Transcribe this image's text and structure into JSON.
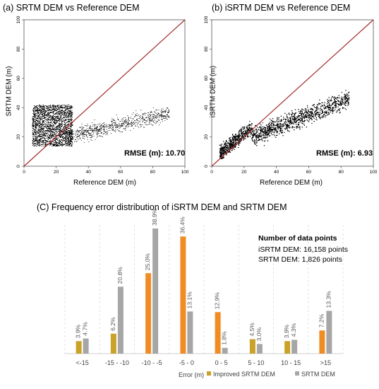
{
  "chart_data": [
    {
      "type": "scatter",
      "title": "(a) SRTM DEM vs Reference DEM",
      "xlabel": "Reference DEM (m)",
      "ylabel": "SRTM DEM (m)",
      "xlim": [
        0,
        100
      ],
      "ylim": [
        0,
        100
      ],
      "xticks": [
        0,
        20,
        40,
        60,
        80,
        100
      ],
      "yticks": [
        0,
        20,
        40,
        60,
        80,
        100
      ],
      "reference_line": "1:1",
      "annotation": "RMSE (m): 10.70",
      "point_cloud": {
        "x_range": [
          5,
          90
        ],
        "y_range": [
          13,
          45
        ],
        "dense_core": {
          "x_range": [
            5,
            30
          ],
          "y_range": [
            14,
            42
          ]
        },
        "n_points": 1826
      }
    },
    {
      "type": "scatter",
      "title": "(b) iSRTM DEM vs Reference DEM",
      "xlabel": "Reference DEM (m)",
      "ylabel": "iSRTM DEM (m)",
      "xlim": [
        0,
        100
      ],
      "ylim": [
        0,
        100
      ],
      "xticks": [
        0,
        20,
        40,
        60,
        80,
        100
      ],
      "yticks": [
        0,
        20,
        40,
        60,
        80,
        100
      ],
      "reference_line": "1:1",
      "annotation": "RMSE (m): 6.93",
      "point_cloud": {
        "x_range": [
          5,
          88
        ],
        "y_range": [
          5,
          62
        ],
        "trend": "increasing, below 1:1 line for higher values",
        "n_points": 16158
      }
    },
    {
      "type": "bar",
      "title": "(C) Frequency error distribution of  iSRTM DEM and SRTM DEM",
      "xlabel": "Error (m)",
      "categories": [
        "<-15",
        "-15 - -10",
        "-10 - -5",
        "-5 - 0",
        "0 - 5",
        "5 - 10",
        "10 - 15",
        ">15"
      ],
      "series": [
        {
          "name": "Improved SRTM DEM",
          "color": "#F08C24",
          "values": [
            3.9,
            6.2,
            25.0,
            36.4,
            12.9,
            4.5,
            3.9,
            7.2
          ],
          "labels": [
            "3.9%",
            "6.2%",
            "25.0%",
            "36.4%",
            "12.9%",
            "4.5%",
            "3.9%",
            "7.2%"
          ]
        },
        {
          "name": "SRTM DEM",
          "color": "#A6A6A6",
          "values": [
            4.7,
            20.8,
            38.9,
            13.1,
            1.8,
            3.0,
            4.3,
            13.3
          ],
          "labels": [
            "4.7%",
            "20.8%",
            "38.9%",
            "13.1%",
            "1.8%",
            "3.0%",
            "4.3%",
            "13.3%"
          ]
        }
      ],
      "legend_position": "bottom",
      "gold_color": "#C9A227",
      "ylim": [
        0,
        40
      ],
      "grid": "vertical",
      "annotation": {
        "heading": "Number of data points",
        "lines": [
          "iSRTM DEM: 16,158 points",
          "SRTM DEM: 1,826 points"
        ]
      }
    }
  ]
}
